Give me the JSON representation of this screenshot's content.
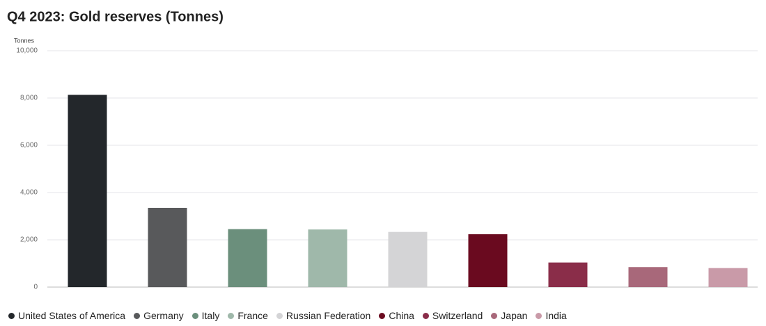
{
  "chart_data": {
    "type": "bar",
    "title": "Q4 2023: Gold reserves (Tonnes)",
    "y_label": "Tonnes",
    "categories": [
      "United States of America",
      "Germany",
      "Italy",
      "France",
      "Russian Federation",
      "China",
      "Switzerland",
      "Japan",
      "India"
    ],
    "values": [
      8133,
      3353,
      2452,
      2437,
      2333,
      2235,
      1040,
      846,
      804
    ],
    "colors": [
      "#23272b",
      "#58595b",
      "#6b8f7c",
      "#9fb8aa",
      "#d4d4d6",
      "#6a0a1f",
      "#8a2d49",
      "#a8687a",
      "#c99aa8"
    ],
    "ylim": [
      0,
      10000
    ],
    "yticks": [
      0,
      {
        "value": 2000,
        "label": "2,000"
      },
      {
        "value": 4000,
        "label": "4,000"
      },
      {
        "value": 6000,
        "label": "6,000"
      },
      {
        "value": 8000,
        "label": "8,000"
      },
      {
        "value": 10000,
        "label": "10,000"
      }
    ],
    "grid": true
  }
}
